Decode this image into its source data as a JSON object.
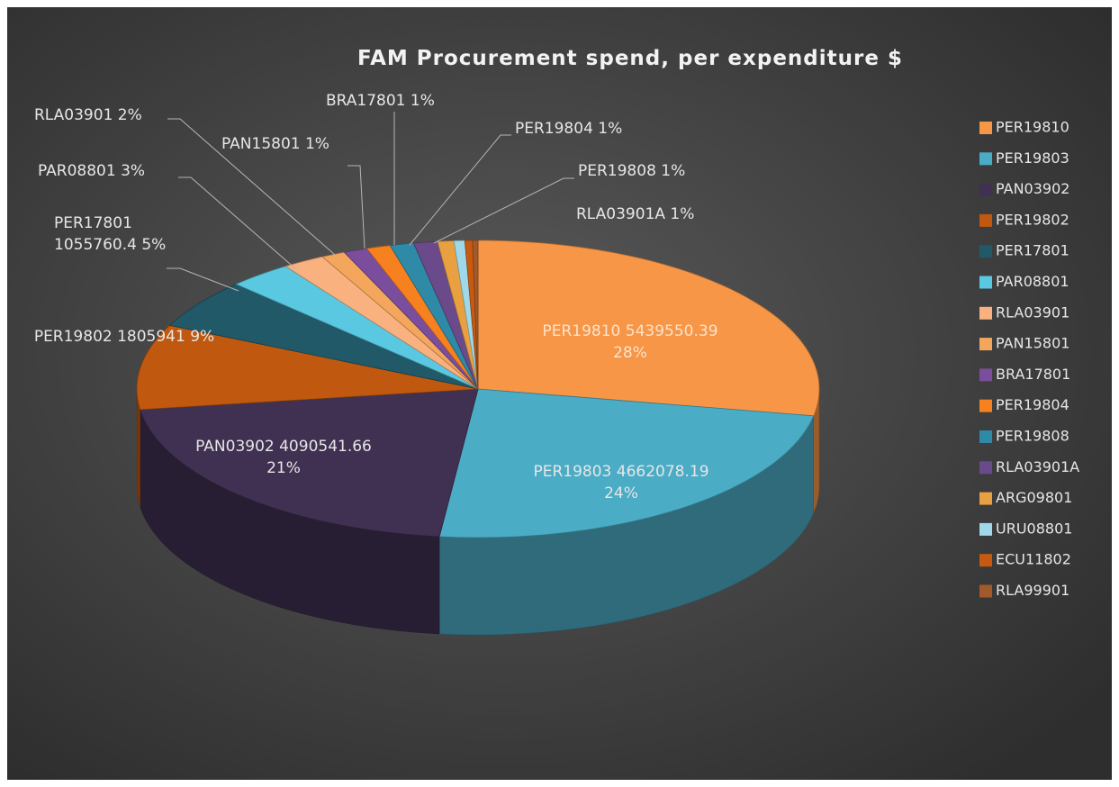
{
  "chart_data": {
    "type": "pie",
    "title": "FAM Procurement spend, per expenditure $",
    "categories": [
      "PER19810",
      "PER19803",
      "PAN03902",
      "PER19802",
      "PER17801",
      "PAR08801",
      "RLA03901",
      "PAN15801",
      "BRA17801",
      "PER19804",
      "PER19808",
      "RLA03901A",
      "ARG09801",
      "URU08801",
      "ECU11802",
      "RLA99901"
    ],
    "values": [
      5439550.39,
      4662078.19,
      4090541.66,
      1805941,
      1055760.4,
      585000,
      390000,
      220000,
      220000,
      220000,
      220000,
      220000,
      150000,
      100000,
      70000,
      50000
    ],
    "value_labels": [
      "PER19810 5439550.39 28%",
      "PER19803 4662078.19 24%",
      "PAN03902 4090541.66 21%",
      "PER19802 1805941 9%",
      "PER17801 1055760.4 5%",
      "PAR08801 3%",
      "RLA03901 2%",
      "PAN15801 1%",
      "BRA17801 1%",
      "PER19804 1%",
      "PER19808 1%",
      "RLA03901A 1%",
      null,
      null,
      null,
      null
    ],
    "colors": [
      "#f79646",
      "#4bacc6",
      "#403152",
      "#c0590f",
      "#215968",
      "#5ac8e0",
      "#f9b17f",
      "#f3a65c",
      "#7a4e9c",
      "#f7801f",
      "#2e8aa6",
      "#6a4a8a",
      "#e8a040",
      "#9fd8e8",
      "#c85a10",
      "#a35a2a"
    ],
    "legend": "right"
  }
}
